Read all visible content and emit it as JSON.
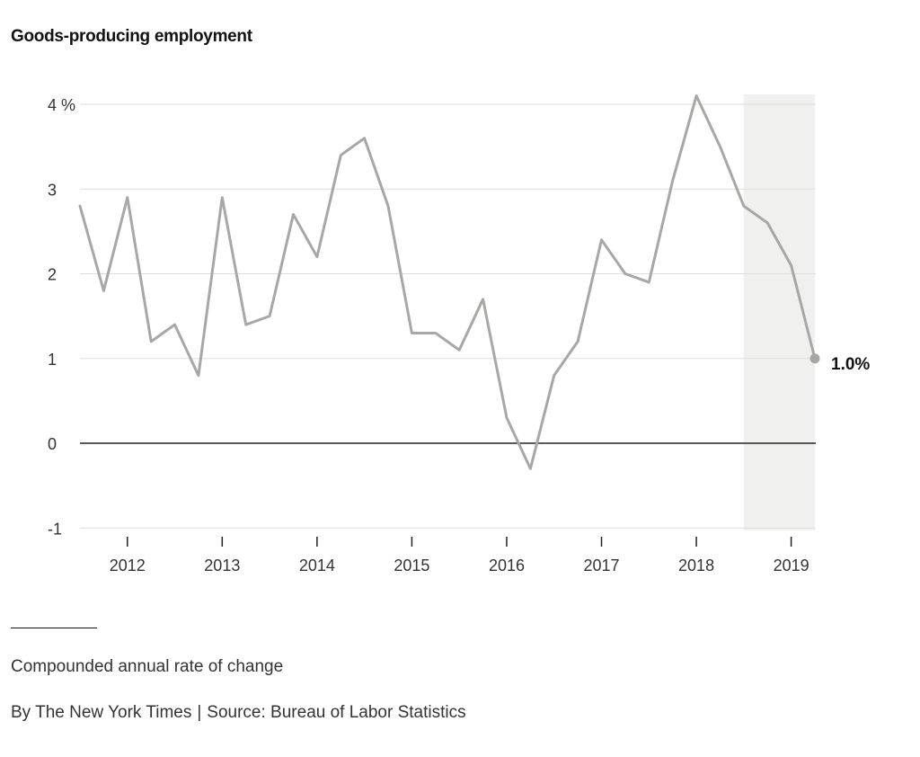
{
  "chart_data": {
    "type": "line",
    "title": "Goods-producing employment",
    "ylabel": "",
    "xlabel": "",
    "y_unit_suffix": " %",
    "ylim": [
      -1,
      4.1
    ],
    "xlim": [
      2011.5,
      2019.5
    ],
    "y_ticks": [
      -1,
      0,
      1,
      2,
      3,
      4
    ],
    "y_tick_labels": [
      "-1",
      "0",
      "1",
      "2",
      "3",
      "4 %"
    ],
    "x_ticks": [
      2012,
      2013,
      2014,
      2015,
      2016,
      2017,
      2018,
      2019
    ],
    "x_tick_labels": [
      "2012",
      "2013",
      "2014",
      "2015",
      "2016",
      "2017",
      "2018",
      "2019"
    ],
    "grid": true,
    "highlight_range": [
      2018.5,
      2019.25
    ],
    "end_label": "1.0%",
    "series": [
      {
        "x": [
          2011.5,
          2011.75,
          2012.0,
          2012.25,
          2012.5,
          2012.75,
          2013.0,
          2013.25,
          2013.5,
          2013.75,
          2014.0,
          2014.25,
          2014.5,
          2014.75,
          2015.0,
          2015.25,
          2015.5,
          2015.75,
          2016.0,
          2016.25,
          2016.5,
          2016.75,
          2017.0,
          2017.25,
          2017.5,
          2017.75,
          2018.0,
          2018.25,
          2018.5,
          2018.75,
          2019.0,
          2019.25
        ],
        "values": [
          2.8,
          1.8,
          2.9,
          1.2,
          1.4,
          0.8,
          2.9,
          1.4,
          1.5,
          2.7,
          2.2,
          3.4,
          3.6,
          2.8,
          1.3,
          1.3,
          1.1,
          1.7,
          0.3,
          -0.3,
          0.8,
          1.2,
          2.4,
          2.0,
          1.9,
          3.1,
          4.1,
          3.5,
          2.8,
          2.6,
          2.1,
          1.0
        ]
      }
    ],
    "colors": {
      "line": "#a8a7a5",
      "grid": "#dddddd",
      "zero_line": "#222222",
      "highlight": "#f0f0ef",
      "axis_text": "#333333"
    }
  },
  "footer": {
    "note": "Compounded annual rate of change",
    "credit_by": "By The New York Times",
    "credit_separator": "|",
    "credit_source": "Source: Bureau of Labor Statistics"
  }
}
